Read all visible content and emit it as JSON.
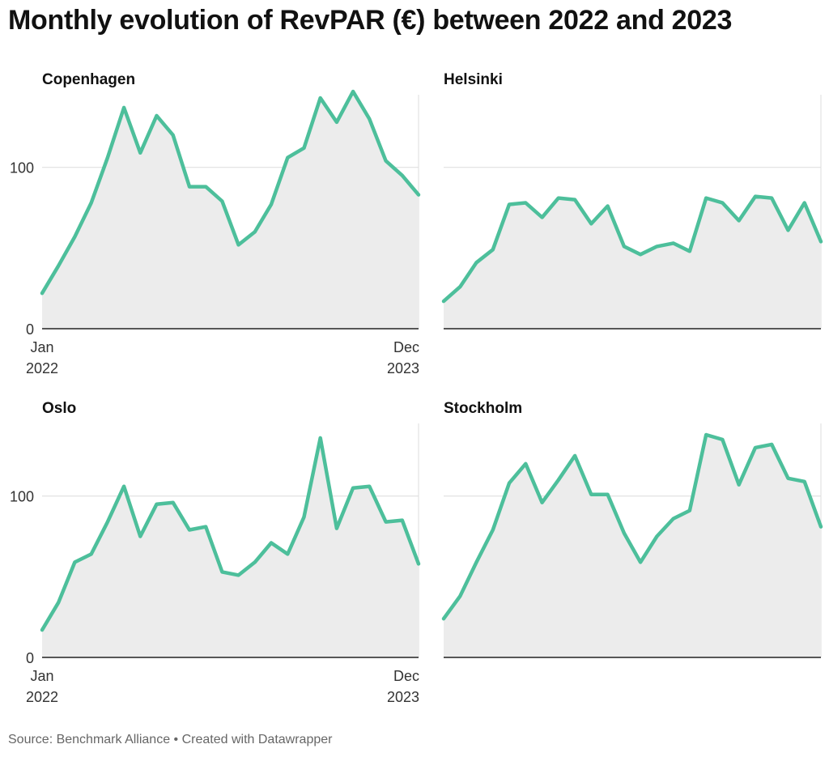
{
  "title": "Monthly evolution of RevPAR (€) between 2022 and 2023",
  "footer": "Source: Benchmark Alliance • Created with Datawrapper",
  "colors": {
    "line": "#4dbf9b",
    "area": "#ececec"
  },
  "chart_data": [
    {
      "type": "area",
      "title": "Copenhagen",
      "x_tick_labels": [
        [
          "Jan",
          "2022"
        ],
        [
          "Dec",
          "2023"
        ]
      ],
      "ylim": [
        0,
        145
      ],
      "y_ticks": [
        "0",
        "100"
      ],
      "grid": true,
      "x": [
        "2022-01",
        "2022-02",
        "2022-03",
        "2022-04",
        "2022-05",
        "2022-06",
        "2022-07",
        "2022-08",
        "2022-09",
        "2022-10",
        "2022-11",
        "2022-12",
        "2023-01",
        "2023-02",
        "2023-03",
        "2023-04",
        "2023-05",
        "2023-06",
        "2023-07",
        "2023-08",
        "2023-09",
        "2023-10",
        "2023-11",
        "2023-12"
      ],
      "values": [
        22,
        39,
        57,
        78,
        106,
        137,
        109,
        132,
        120,
        88,
        88,
        79,
        52,
        60,
        77,
        106,
        112,
        143,
        128,
        147,
        130,
        104,
        95,
        83
      ]
    },
    {
      "type": "area",
      "title": "Helsinki",
      "x_tick_labels": [],
      "ylim": [
        0,
        145
      ],
      "y_ticks": [],
      "grid": true,
      "x": [
        "2022-01",
        "2022-02",
        "2022-03",
        "2022-04",
        "2022-05",
        "2022-06",
        "2022-07",
        "2022-08",
        "2022-09",
        "2022-10",
        "2022-11",
        "2022-12",
        "2023-01",
        "2023-02",
        "2023-03",
        "2023-04",
        "2023-05",
        "2023-06",
        "2023-07",
        "2023-08",
        "2023-09",
        "2023-10",
        "2023-11",
        "2023-12"
      ],
      "values": [
        17,
        26,
        41,
        49,
        77,
        78,
        69,
        81,
        80,
        65,
        76,
        51,
        46,
        51,
        53,
        48,
        81,
        78,
        67,
        82,
        81,
        61,
        78,
        54
      ]
    },
    {
      "type": "area",
      "title": "Oslo",
      "x_tick_labels": [
        [
          "Jan",
          "2022"
        ],
        [
          "Dec",
          "2023"
        ]
      ],
      "ylim": [
        0,
        145
      ],
      "y_ticks": [
        "0",
        "100"
      ],
      "grid": true,
      "x": [
        "2022-01",
        "2022-02",
        "2022-03",
        "2022-04",
        "2022-05",
        "2022-06",
        "2022-07",
        "2022-08",
        "2022-09",
        "2022-10",
        "2022-11",
        "2022-12",
        "2023-01",
        "2023-02",
        "2023-03",
        "2023-04",
        "2023-05",
        "2023-06",
        "2023-07",
        "2023-08",
        "2023-09",
        "2023-10",
        "2023-11",
        "2023-12"
      ],
      "values": [
        17,
        34,
        59,
        64,
        84,
        106,
        75,
        95,
        96,
        79,
        81,
        53,
        51,
        59,
        71,
        64,
        87,
        136,
        80,
        105,
        106,
        84,
        85,
        58
      ]
    },
    {
      "type": "area",
      "title": "Stockholm",
      "x_tick_labels": [],
      "ylim": [
        0,
        145
      ],
      "y_ticks": [],
      "grid": true,
      "x": [
        "2022-01",
        "2022-02",
        "2022-03",
        "2022-04",
        "2022-05",
        "2022-06",
        "2022-07",
        "2022-08",
        "2022-09",
        "2022-10",
        "2022-11",
        "2022-12",
        "2023-01",
        "2023-02",
        "2023-03",
        "2023-04",
        "2023-05",
        "2023-06",
        "2023-07",
        "2023-08",
        "2023-09",
        "2023-10",
        "2023-11",
        "2023-12"
      ],
      "values": [
        24,
        38,
        59,
        79,
        108,
        120,
        96,
        110,
        125,
        101,
        101,
        77,
        59,
        75,
        86,
        91,
        138,
        135,
        107,
        130,
        132,
        111,
        109,
        81
      ]
    }
  ]
}
